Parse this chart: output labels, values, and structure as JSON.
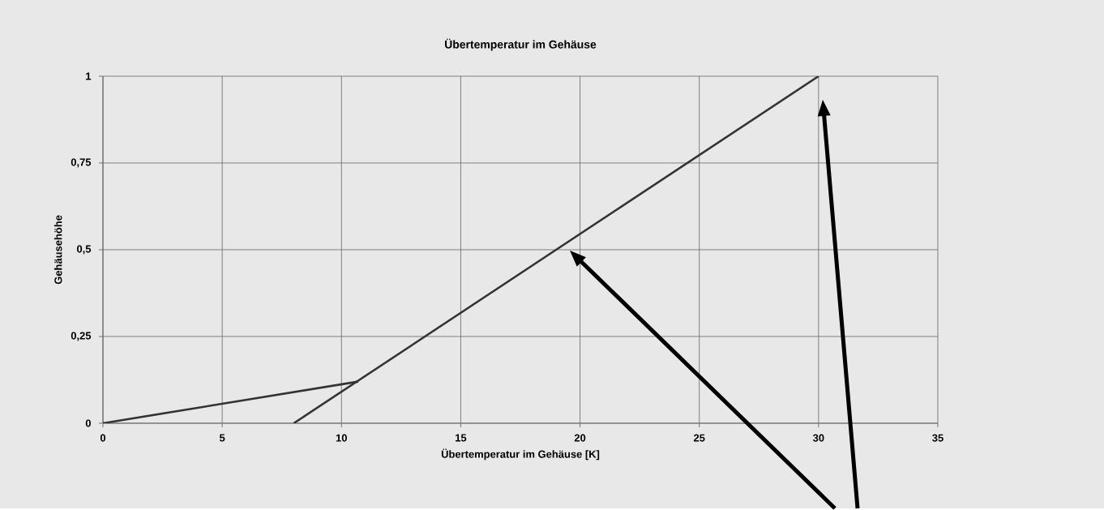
{
  "chart_data": {
    "type": "line",
    "title": "Übertemperatur im Gehäuse",
    "xlabel": "Übertemperatur im Gehäuse [K]",
    "ylabel": "Gehäusehöhe",
    "series": [
      {
        "color": "#333333",
        "x": [
          0,
          10.7
        ],
        "values": [
          0,
          0.12
        ]
      },
      {
        "color": "#333333",
        "x": [
          8,
          30
        ],
        "values": [
          0,
          1
        ]
      }
    ],
    "xlim": [
      0,
      35
    ],
    "ylim": [
      0,
      1
    ],
    "xticks": [
      0,
      5,
      10,
      15,
      20,
      25,
      30,
      35
    ],
    "yticks": [
      0,
      {
        "value": 0.25,
        "label": "0,25"
      },
      {
        "value": 0.5,
        "label": "0,5"
      },
      {
        "value": 0.75,
        "label": "0,75"
      },
      1
    ],
    "grid": true,
    "marker": "none",
    "line_style": "solid"
  }
}
